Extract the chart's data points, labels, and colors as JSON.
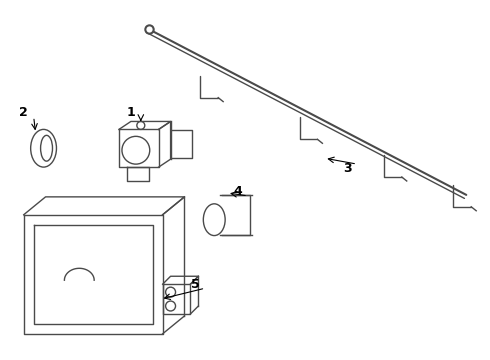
{
  "bg_color": "#ffffff",
  "line_color": "#4a4a4a",
  "lw": 1.0,
  "lw2": 1.5
}
